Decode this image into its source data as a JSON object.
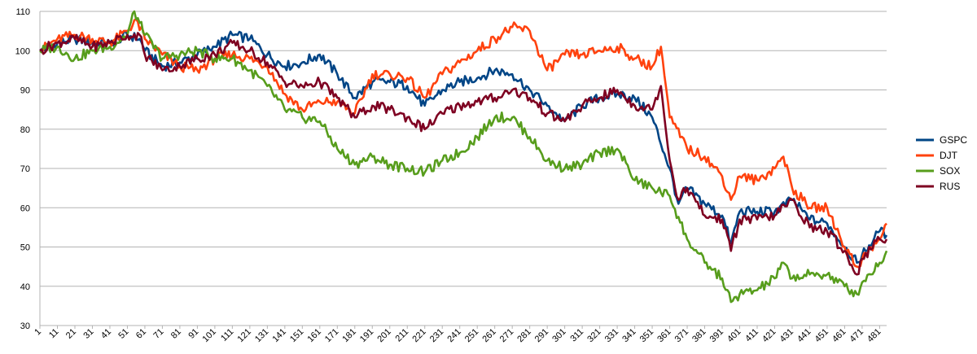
{
  "chart_data": {
    "type": "line",
    "xlabel": "",
    "ylabel": "",
    "ylim": [
      30,
      110
    ],
    "yticks": [
      30,
      40,
      50,
      60,
      70,
      80,
      90,
      100,
      110
    ],
    "xlim": [
      1,
      485
    ],
    "xticks": [
      1,
      11,
      21,
      31,
      41,
      51,
      61,
      71,
      81,
      91,
      101,
      111,
      121,
      131,
      141,
      151,
      161,
      171,
      181,
      191,
      201,
      211,
      221,
      231,
      241,
      251,
      261,
      271,
      281,
      291,
      301,
      311,
      321,
      331,
      341,
      351,
      361,
      371,
      381,
      391,
      401,
      411,
      421,
      431,
      441,
      451,
      461,
      471,
      481
    ],
    "grid": "horizontal",
    "legend_position": "right",
    "series": [
      {
        "name": "GSPC",
        "color": "#004586",
        "points": [
          [
            1,
            100
          ],
          [
            11,
            102
          ],
          [
            21,
            103
          ],
          [
            31,
            102
          ],
          [
            41,
            102
          ],
          [
            51,
            104
          ],
          [
            58,
            103
          ],
          [
            61,
            100
          ],
          [
            71,
            96
          ],
          [
            81,
            97
          ],
          [
            91,
            99
          ],
          [
            101,
            101
          ],
          [
            111,
            104
          ],
          [
            121,
            103
          ],
          [
            131,
            99
          ],
          [
            141,
            96
          ],
          [
            151,
            97
          ],
          [
            161,
            99
          ],
          [
            171,
            94
          ],
          [
            181,
            88
          ],
          [
            191,
            92
          ],
          [
            201,
            92
          ],
          [
            211,
            91
          ],
          [
            221,
            86
          ],
          [
            231,
            90
          ],
          [
            241,
            92
          ],
          [
            251,
            93
          ],
          [
            261,
            95
          ],
          [
            271,
            94
          ],
          [
            281,
            90
          ],
          [
            291,
            86
          ],
          [
            301,
            82
          ],
          [
            311,
            86
          ],
          [
            321,
            88
          ],
          [
            331,
            89
          ],
          [
            341,
            88
          ],
          [
            351,
            83
          ],
          [
            361,
            70
          ],
          [
            366,
            61
          ],
          [
            371,
            65
          ],
          [
            381,
            61
          ],
          [
            391,
            58
          ],
          [
            396,
            51
          ],
          [
            401,
            59
          ],
          [
            411,
            59
          ],
          [
            421,
            59
          ],
          [
            431,
            62
          ],
          [
            441,
            57
          ],
          [
            451,
            56
          ],
          [
            461,
            50
          ],
          [
            468,
            46
          ],
          [
            471,
            48
          ],
          [
            481,
            54
          ],
          [
            485,
            53
          ]
        ]
      },
      {
        "name": "DJT",
        "color": "#ff420e",
        "points": [
          [
            1,
            100
          ],
          [
            11,
            103
          ],
          [
            21,
            104
          ],
          [
            31,
            103
          ],
          [
            41,
            102
          ],
          [
            51,
            105
          ],
          [
            56,
            108
          ],
          [
            61,
            103
          ],
          [
            71,
            99
          ],
          [
            81,
            96
          ],
          [
            91,
            95
          ],
          [
            101,
            98
          ],
          [
            111,
            99
          ],
          [
            121,
            98
          ],
          [
            131,
            96
          ],
          [
            141,
            89
          ],
          [
            151,
            85
          ],
          [
            161,
            87
          ],
          [
            171,
            87
          ],
          [
            181,
            84
          ],
          [
            191,
            94
          ],
          [
            201,
            94
          ],
          [
            211,
            93
          ],
          [
            221,
            88
          ],
          [
            231,
            94
          ],
          [
            241,
            97
          ],
          [
            251,
            100
          ],
          [
            261,
            103
          ],
          [
            271,
            106
          ],
          [
            281,
            105
          ],
          [
            291,
            95
          ],
          [
            301,
            99
          ],
          [
            311,
            99
          ],
          [
            321,
            100
          ],
          [
            331,
            101
          ],
          [
            341,
            98
          ],
          [
            351,
            96
          ],
          [
            356,
            101
          ],
          [
            361,
            83
          ],
          [
            371,
            75
          ],
          [
            381,
            73
          ],
          [
            391,
            68
          ],
          [
            396,
            62
          ],
          [
            401,
            68
          ],
          [
            411,
            67
          ],
          [
            421,
            70
          ],
          [
            426,
            73
          ],
          [
            431,
            65
          ],
          [
            441,
            60
          ],
          [
            451,
            60
          ],
          [
            461,
            50
          ],
          [
            468,
            45
          ],
          [
            471,
            47
          ],
          [
            481,
            52
          ],
          [
            485,
            56
          ]
        ]
      },
      {
        "name": "SOX",
        "color": "#579d1c",
        "points": [
          [
            1,
            100
          ],
          [
            11,
            101
          ],
          [
            21,
            98
          ],
          [
            31,
            100
          ],
          [
            41,
            101
          ],
          [
            51,
            104
          ],
          [
            55,
            110
          ],
          [
            61,
            104
          ],
          [
            71,
            98
          ],
          [
            81,
            99
          ],
          [
            91,
            100
          ],
          [
            101,
            98
          ],
          [
            111,
            98
          ],
          [
            121,
            95
          ],
          [
            131,
            91
          ],
          [
            141,
            85
          ],
          [
            151,
            83
          ],
          [
            161,
            82
          ],
          [
            171,
            75
          ],
          [
            181,
            71
          ],
          [
            191,
            73
          ],
          [
            201,
            71
          ],
          [
            211,
            70
          ],
          [
            221,
            69
          ],
          [
            231,
            72
          ],
          [
            241,
            74
          ],
          [
            251,
            78
          ],
          [
            261,
            83
          ],
          [
            271,
            83
          ],
          [
            281,
            78
          ],
          [
            291,
            72
          ],
          [
            301,
            70
          ],
          [
            311,
            71
          ],
          [
            321,
            74
          ],
          [
            331,
            75
          ],
          [
            341,
            67
          ],
          [
            351,
            65
          ],
          [
            361,
            63
          ],
          [
            371,
            52
          ],
          [
            381,
            46
          ],
          [
            391,
            42
          ],
          [
            396,
            36
          ],
          [
            401,
            38
          ],
          [
            411,
            39
          ],
          [
            421,
            42
          ],
          [
            426,
            46
          ],
          [
            431,
            42
          ],
          [
            441,
            43
          ],
          [
            451,
            43
          ],
          [
            461,
            40
          ],
          [
            468,
            38
          ],
          [
            471,
            41
          ],
          [
            481,
            46
          ],
          [
            485,
            49
          ]
        ]
      },
      {
        "name": "RUS",
        "color": "#7e0021",
        "points": [
          [
            1,
            100
          ],
          [
            11,
            102
          ],
          [
            21,
            103
          ],
          [
            31,
            101
          ],
          [
            41,
            102
          ],
          [
            51,
            104
          ],
          [
            58,
            104
          ],
          [
            61,
            99
          ],
          [
            71,
            95
          ],
          [
            81,
            96
          ],
          [
            91,
            98
          ],
          [
            101,
            99
          ],
          [
            111,
            102
          ],
          [
            121,
            100
          ],
          [
            131,
            97
          ],
          [
            141,
            92
          ],
          [
            151,
            91
          ],
          [
            161,
            92
          ],
          [
            171,
            88
          ],
          [
            181,
            83
          ],
          [
            191,
            86
          ],
          [
            201,
            85
          ],
          [
            211,
            83
          ],
          [
            221,
            80
          ],
          [
            231,
            84
          ],
          [
            241,
            86
          ],
          [
            251,
            87
          ],
          [
            261,
            88
          ],
          [
            271,
            90
          ],
          [
            281,
            88
          ],
          [
            291,
            84
          ],
          [
            301,
            82
          ],
          [
            311,
            86
          ],
          [
            321,
            88
          ],
          [
            331,
            90
          ],
          [
            341,
            86
          ],
          [
            351,
            85
          ],
          [
            356,
            91
          ],
          [
            361,
            72
          ],
          [
            366,
            62
          ],
          [
            371,
            65
          ],
          [
            381,
            58
          ],
          [
            391,
            57
          ],
          [
            396,
            49
          ],
          [
            401,
            57
          ],
          [
            411,
            57
          ],
          [
            421,
            58
          ],
          [
            431,
            62
          ],
          [
            441,
            55
          ],
          [
            451,
            54
          ],
          [
            461,
            49
          ],
          [
            468,
            43
          ],
          [
            471,
            47
          ],
          [
            481,
            52
          ],
          [
            485,
            52
          ]
        ]
      }
    ]
  }
}
